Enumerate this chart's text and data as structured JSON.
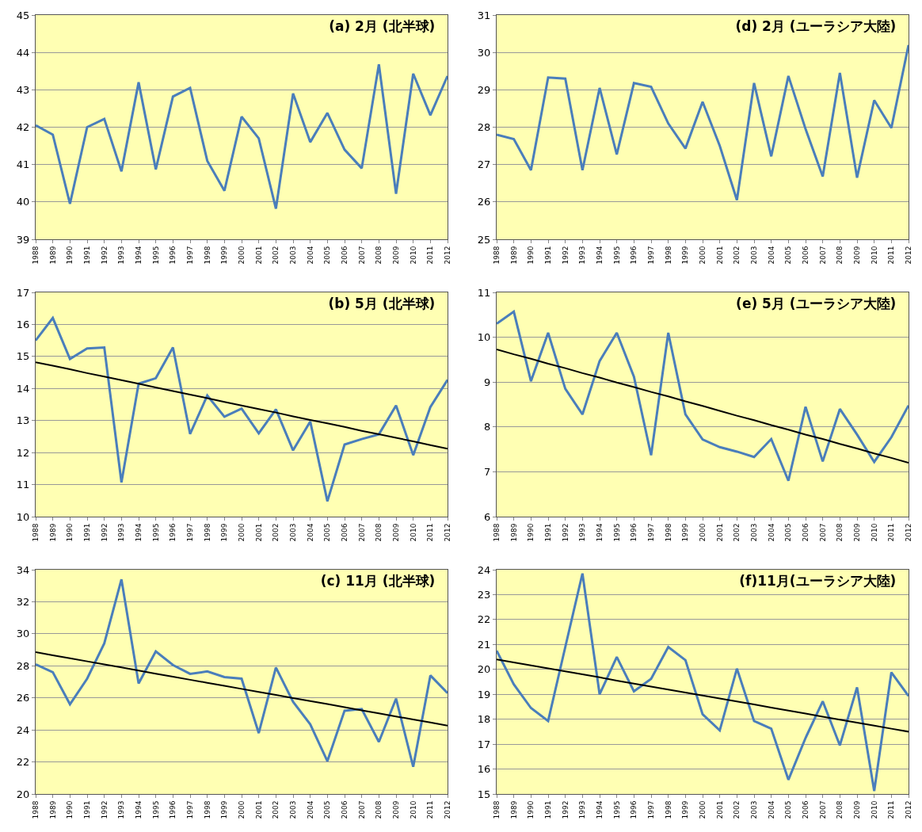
{
  "chart_data": [
    {
      "type": "line",
      "title": "(a) 2月 (北半球)",
      "categories": [
        "1988",
        "1989",
        "1990",
        "1991",
        "1992",
        "1993",
        "1994",
        "1995",
        "1996",
        "1997",
        "1998",
        "1999",
        "2000",
        "2001",
        "2002",
        "2003",
        "2004",
        "2005",
        "2006",
        "2007",
        "2008",
        "2009",
        "2010",
        "2011",
        "2012"
      ],
      "series": [
        {
          "color": "#4a7ebb",
          "values": [
            42.05,
            41.8,
            39.95,
            42.0,
            42.22,
            40.82,
            43.2,
            40.87,
            42.82,
            43.05,
            41.1,
            40.3,
            42.28,
            41.7,
            39.82,
            42.9,
            41.6,
            42.38,
            41.4,
            40.9,
            43.68,
            40.22,
            43.43,
            42.32,
            43.37
          ]
        }
      ],
      "ylim": [
        39,
        45
      ],
      "yticks": [
        39,
        40,
        41,
        42,
        43,
        44,
        45
      ],
      "grid": "y"
    },
    {
      "type": "line",
      "title": "(d) 2月 (ユーラシア大陸)",
      "categories": [
        "1988",
        "1989",
        "1990",
        "1991",
        "1992",
        "1993",
        "1994",
        "1995",
        "1996",
        "1997",
        "1998",
        "1999",
        "2000",
        "2001",
        "2002",
        "2003",
        "2004",
        "2005",
        "2006",
        "2007",
        "2008",
        "2009",
        "2010",
        "2011",
        "2012"
      ],
      "series": [
        {
          "color": "#4a7ebb",
          "values": [
            27.8,
            27.68,
            26.85,
            29.33,
            29.3,
            26.85,
            29.05,
            27.27,
            29.18,
            29.08,
            28.1,
            27.43,
            28.68,
            27.5,
            26.05,
            29.18,
            27.22,
            29.37,
            27.95,
            26.68,
            29.45,
            26.65,
            28.72,
            27.98,
            30.2
          ]
        }
      ],
      "ylim": [
        25,
        31
      ],
      "yticks": [
        25,
        26,
        27,
        28,
        29,
        30,
        31
      ],
      "grid": "y"
    },
    {
      "type": "line",
      "title": "(b) 5月 (北半球)",
      "categories": [
        "1988",
        "1989",
        "1990",
        "1991",
        "1992",
        "1993",
        "1994",
        "1995",
        "1996",
        "1997",
        "1998",
        "1999",
        "2000",
        "2001",
        "2002",
        "2003",
        "2004",
        "2005",
        "2006",
        "2007",
        "2008",
        "2009",
        "2010",
        "2011",
        "2012"
      ],
      "series": [
        {
          "color": "#4a7ebb",
          "values": [
            15.5,
            16.2,
            14.92,
            15.25,
            15.28,
            11.07,
            14.15,
            14.32,
            15.28,
            12.58,
            13.78,
            13.12,
            13.37,
            12.6,
            13.35,
            12.07,
            12.97,
            10.48,
            12.25,
            12.42,
            12.57,
            13.47,
            11.92,
            13.42,
            14.27
          ]
        },
        {
          "type": "line",
          "color": "#000000",
          "values": [
            14.82,
            14.71,
            14.6,
            14.48,
            14.37,
            14.26,
            14.15,
            14.03,
            13.92,
            13.81,
            13.7,
            13.58,
            13.47,
            13.36,
            13.25,
            13.13,
            13.02,
            12.91,
            12.8,
            12.68,
            12.57,
            12.46,
            12.35,
            12.23,
            12.12
          ]
        }
      ],
      "ylim": [
        10,
        17
      ],
      "yticks": [
        10,
        11,
        12,
        13,
        14,
        15,
        16,
        17
      ],
      "grid": "y"
    },
    {
      "type": "line",
      "title": "(e) 5月 (ユーラシア大陸)",
      "categories": [
        "1988",
        "1989",
        "1990",
        "1991",
        "1992",
        "1993",
        "1994",
        "1995",
        "1996",
        "1997",
        "1998",
        "1999",
        "2000",
        "2001",
        "2002",
        "2003",
        "2004",
        "2005",
        "2006",
        "2007",
        "2008",
        "2009",
        "2010",
        "2011",
        "2012"
      ],
      "series": [
        {
          "color": "#4a7ebb",
          "values": [
            10.3,
            10.57,
            9.02,
            10.1,
            8.85,
            8.28,
            9.47,
            10.1,
            9.12,
            7.37,
            10.1,
            8.28,
            7.72,
            7.55,
            7.45,
            7.33,
            7.73,
            6.8,
            8.45,
            7.23,
            8.4,
            7.83,
            7.22,
            7.77,
            8.48
          ]
        },
        {
          "type": "line",
          "color": "#000000",
          "values": [
            9.73,
            9.62,
            9.52,
            9.41,
            9.31,
            9.2,
            9.1,
            8.99,
            8.89,
            8.78,
            8.68,
            8.57,
            8.47,
            8.36,
            8.25,
            8.15,
            8.04,
            7.94,
            7.83,
            7.73,
            7.62,
            7.52,
            7.41,
            7.31,
            7.2
          ]
        }
      ],
      "ylim": [
        6,
        11
      ],
      "yticks": [
        6,
        7,
        8,
        9,
        10,
        11
      ],
      "grid": "y"
    },
    {
      "type": "line",
      "title": "(c) 11月 (北半球)",
      "categories": [
        "1988",
        "1989",
        "1990",
        "1991",
        "1992",
        "1993",
        "1994",
        "1995",
        "1996",
        "1997",
        "1998",
        "1999",
        "2000",
        "2001",
        "2002",
        "2003",
        "2004",
        "2005",
        "2006",
        "2007",
        "2008",
        "2009",
        "2010",
        "2011",
        "2012"
      ],
      "series": [
        {
          "color": "#4a7ebb",
          "values": [
            28.1,
            27.6,
            25.6,
            27.2,
            29.4,
            33.4,
            26.9,
            28.9,
            28.05,
            27.5,
            27.65,
            27.3,
            27.2,
            23.8,
            27.9,
            25.75,
            24.35,
            22.05,
            25.2,
            25.3,
            23.25,
            25.95,
            21.7,
            27.4,
            26.3
          ]
        },
        {
          "type": "line",
          "color": "#000000",
          "values": [
            28.85,
            28.66,
            28.47,
            28.28,
            28.09,
            27.9,
            27.71,
            27.51,
            27.32,
            27.13,
            26.94,
            26.75,
            26.56,
            26.37,
            26.18,
            25.99,
            25.8,
            25.61,
            25.42,
            25.22,
            25.03,
            24.84,
            24.65,
            24.46,
            24.27
          ]
        }
      ],
      "ylim": [
        20,
        34
      ],
      "yticks": [
        20,
        22,
        24,
        26,
        28,
        30,
        32,
        34
      ],
      "grid": "y"
    },
    {
      "type": "line",
      "title": "(f)11月(ユーラシア大陸)",
      "categories": [
        "1988",
        "1989",
        "1990",
        "1991",
        "1992",
        "1993",
        "1994",
        "1995",
        "1996",
        "1997",
        "1998",
        "1999",
        "2000",
        "2001",
        "2002",
        "2003",
        "2004",
        "2005",
        "2006",
        "2007",
        "2008",
        "2009",
        "2010",
        "2011",
        "2012"
      ],
      "series": [
        {
          "color": "#4a7ebb",
          "values": [
            20.75,
            19.4,
            18.45,
            17.93,
            20.9,
            23.85,
            19.0,
            20.5,
            19.12,
            19.62,
            20.9,
            20.37,
            18.2,
            17.55,
            20.03,
            17.93,
            17.62,
            15.57,
            17.25,
            18.72,
            16.95,
            19.28,
            15.12,
            19.88,
            18.93
          ]
        },
        {
          "type": "line",
          "color": "#000000",
          "values": [
            20.4,
            20.28,
            20.16,
            20.04,
            19.92,
            19.8,
            19.68,
            19.55,
            19.43,
            19.31,
            19.19,
            19.07,
            18.95,
            18.83,
            18.71,
            18.59,
            18.47,
            18.35,
            18.23,
            18.1,
            17.98,
            17.86,
            17.74,
            17.62,
            17.5
          ]
        }
      ],
      "ylim": [
        15,
        24
      ],
      "yticks": [
        15,
        16,
        17,
        18,
        19,
        20,
        21,
        22,
        23,
        24
      ],
      "grid": "y"
    }
  ]
}
